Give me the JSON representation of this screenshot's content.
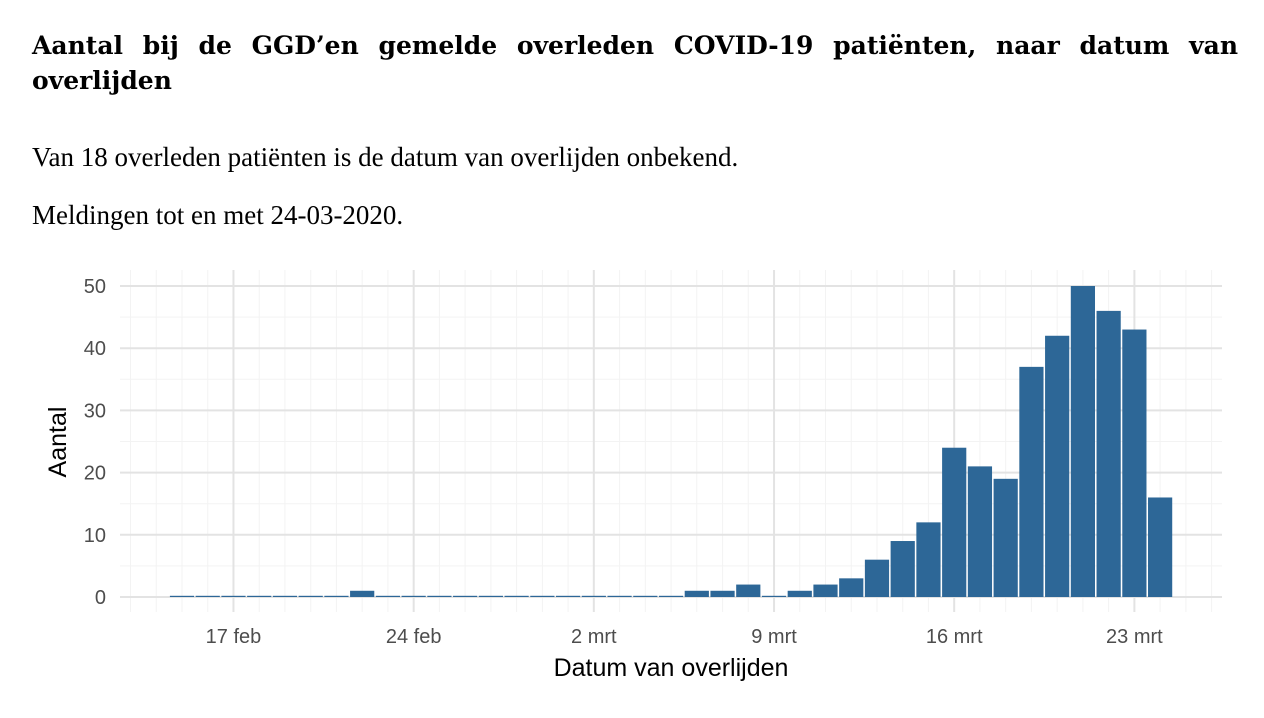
{
  "header": {
    "title": "Aantal bij de GGD’en gemelde overleden COVID-19 patiënten, naar datum van overlijden",
    "subtitle_1": "Van 18 overleden patiënten is de datum van overlijden onbekend.",
    "subtitle_2": "Meldingen tot en met 24-03-2020."
  },
  "chart_data": {
    "type": "bar",
    "xlabel": "Datum van overlijden",
    "ylabel": "Aantal",
    "ylim": [
      0,
      50
    ],
    "yticks": [
      0,
      10,
      20,
      30,
      40,
      50
    ],
    "grid": true,
    "bar_color": "#2d6797",
    "x_tick_labels": [
      "17 feb",
      "24 feb",
      "2 mrt",
      "9 mrt",
      "16 mrt",
      "23 mrt"
    ],
    "x_tick_dates": [
      "2020-02-17",
      "2020-02-24",
      "2020-03-02",
      "2020-03-09",
      "2020-03-16",
      "2020-03-23"
    ],
    "x": [
      "2020-02-15",
      "2020-02-16",
      "2020-02-17",
      "2020-02-18",
      "2020-02-19",
      "2020-02-20",
      "2020-02-21",
      "2020-02-22",
      "2020-02-23",
      "2020-02-24",
      "2020-02-25",
      "2020-02-26",
      "2020-02-27",
      "2020-02-28",
      "2020-02-29",
      "2020-03-01",
      "2020-03-02",
      "2020-03-03",
      "2020-03-04",
      "2020-03-05",
      "2020-03-06",
      "2020-03-07",
      "2020-03-08",
      "2020-03-09",
      "2020-03-10",
      "2020-03-11",
      "2020-03-12",
      "2020-03-13",
      "2020-03-14",
      "2020-03-15",
      "2020-03-16",
      "2020-03-17",
      "2020-03-18",
      "2020-03-19",
      "2020-03-20",
      "2020-03-21",
      "2020-03-22",
      "2020-03-23",
      "2020-03-24"
    ],
    "values": [
      0,
      0,
      0,
      0,
      0,
      0,
      0,
      1,
      0,
      0,
      0,
      0,
      0,
      0,
      0,
      0,
      0,
      0,
      0,
      0,
      1,
      1,
      2,
      0,
      1,
      2,
      3,
      6,
      9,
      12,
      24,
      21,
      19,
      37,
      42,
      50,
      46,
      43,
      16
    ]
  }
}
